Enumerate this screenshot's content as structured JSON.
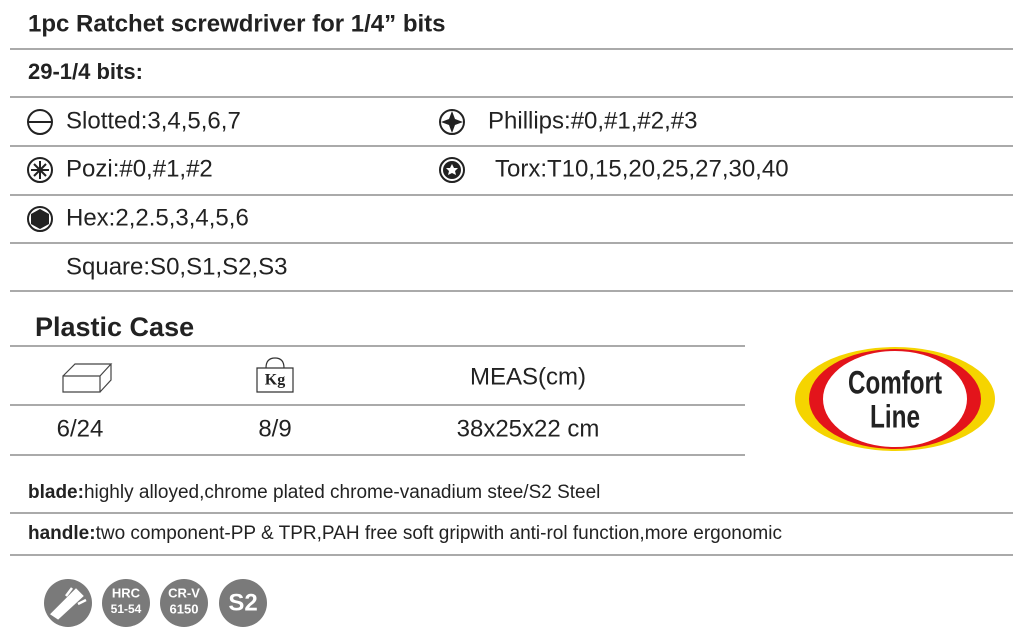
{
  "title": "1pc Ratchet screwdriver for 1/4” bits",
  "bits_heading": "29-1/4 bits:",
  "bits": [
    "Slotted:3,4,5,6,7",
    "Phillips:#0,#1,#2,#3",
    "Pozi:#0,#1,#2",
    "Torx:T10,15,20,25,27,30,40",
    "Hex:2,2.5,3,4,5,6",
    "Square:S0,S1,S2,S3"
  ],
  "case_heading": "Plastic Case",
  "table": {
    "header": {
      "weight_icon": "Kg",
      "meas": "MEAS(cm)"
    },
    "row": [
      "6/24",
      "8/9",
      "38x25x22 cm"
    ]
  },
  "logo": [
    "Comfort",
    "Line"
  ],
  "blade": {
    "label": "blade:",
    "text": "highly alloyed,chrome plated chrome-vanadium stee/S2 Steel"
  },
  "handle": {
    "label": "handle:",
    "text": "two component-PP & TPR,PAH free soft gripwith anti-rol function,more ergonomic"
  },
  "badges": {
    "hrc": [
      "HRC",
      "51-54"
    ],
    "crv": [
      "CR-V",
      "6150"
    ],
    "s2": "S2"
  }
}
